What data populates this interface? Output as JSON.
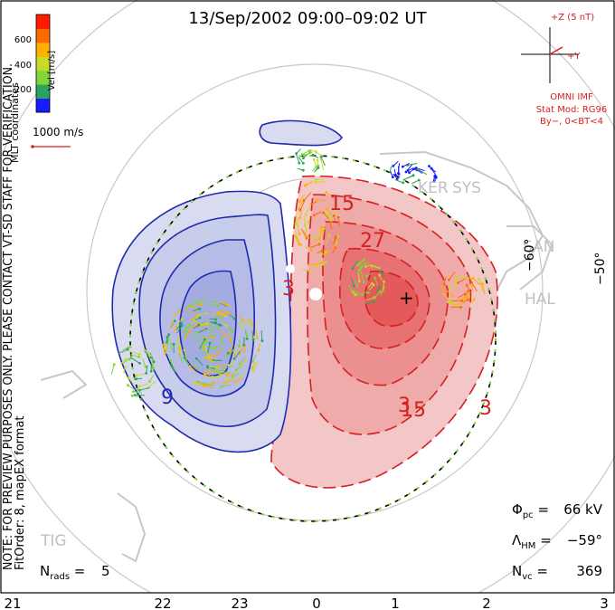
{
  "title": "13/Sep/2002 09:00–09:02 UT",
  "coords_label": "MLT coordinates",
  "note": "NOTE: FOR PREVIEW PURPOSES ONLY. PLEASE CONTACT VT-SD STAFF FOR VERIFICATION.",
  "fitorder": "FitOrder: 8, mapEX format",
  "colorbar": {
    "label": "Vel [m/s]",
    "ticks": [
      "200",
      "400",
      "600"
    ],
    "range": [
      0,
      800
    ],
    "colors": [
      "#1a1aff",
      "#2ba35c",
      "#7fd63a",
      "#c8d92a",
      "#ffb000",
      "#ff6a00",
      "#ff1a00"
    ]
  },
  "vel_scale_label": "1000 m/s",
  "imf": {
    "z_label": "+Z (5 nT)",
    "y_label": "+Y",
    "title": "OMNI IMF",
    "model": "Stat Mod: RG96",
    "cond": "By−, 0<BT<4"
  },
  "lat_labels": [
    "−60°",
    "−50°"
  ],
  "radar_labels": [
    "KER",
    "SYS",
    "SAN",
    "HAL",
    "TIG"
  ],
  "stats": {
    "phi_pc": "66 kV",
    "lambda_hm": "−59°",
    "n_vc": "369",
    "n_rads": "5"
  },
  "mlt_ticks": [
    "21",
    "22",
    "23",
    "0",
    "1",
    "2",
    "3"
  ],
  "contour_labels_pos": [
    "3",
    "15",
    "27",
    "15",
    "3"
  ],
  "contour_labels_neg": [
    "3",
    "9"
  ],
  "chart_data": {
    "type": "map",
    "cross_polar_cap_potential_kV": 66,
    "heppner_maynard_boundary_deg": -59,
    "num_vectors": 369,
    "num_radars": 5,
    "potential_contour_step_kV": 6,
    "positive_cell_max_label_kV": 27,
    "mlt_range": [
      21,
      3
    ],
    "colors": {
      "positive": "#e8202a",
      "negative": "#1f2ab0",
      "boundary": "#7fd63a"
    }
  }
}
